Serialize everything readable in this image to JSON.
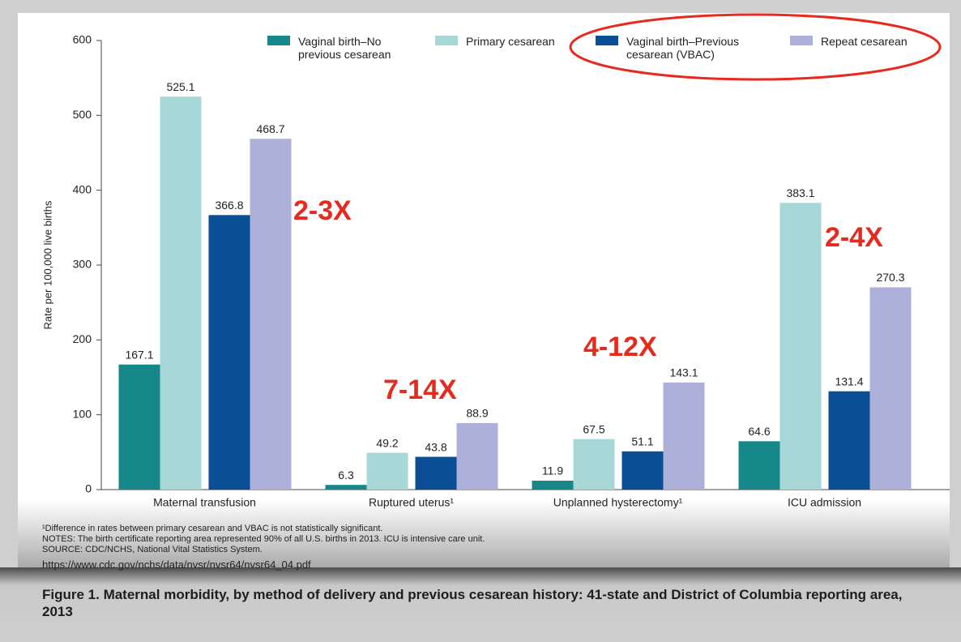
{
  "chart_data": {
    "type": "bar",
    "y_label": "Rate per 100,000 live births",
    "categories": [
      "Maternal transfusion",
      "Ruptured uterus¹",
      "Unplanned hysterectomy¹",
      "ICU admission"
    ],
    "series": [
      {
        "name": "Vaginal birth–No previous cesarean",
        "color": "#17888a",
        "values": [
          167.1,
          6.3,
          11.9,
          64.6
        ]
      },
      {
        "name": "Primary cesarean",
        "color": "#a8d7d7",
        "values": [
          525.1,
          49.2,
          67.5,
          383.1
        ]
      },
      {
        "name": "Vaginal birth–Previous cesarean (VBAC)",
        "color": "#0a4e96",
        "values": [
          366.8,
          43.8,
          51.1,
          131.4
        ]
      },
      {
        "name": "Repeat cesarean",
        "color": "#adb0d8",
        "values": [
          468.7,
          88.9,
          143.1,
          270.3
        ]
      }
    ],
    "ylim": [
      0,
      600
    ],
    "yticks": [
      0,
      100,
      200,
      300,
      400,
      500,
      600
    ],
    "annotations": [
      "2-3X",
      "7-14X",
      "4-12X",
      "2-4X"
    ],
    "annotation_color": "#e62a1e",
    "notes": [
      "¹Difference in rates between primary cesarean and VBAC is not statistically significant.",
      "NOTES: The birth certificate reporting area represented 90% of all U.S. births in 2013. ICU is intensive care unit.",
      "SOURCE: CDC/NCHS, National Vital Statistics System."
    ],
    "url": "https://www.cdc.gov/nchs/data/nvsr/nvsr64/nvsr64_04.pdf",
    "caption": "Figure 1. Maternal morbidity, by method of delivery and previous cesarean history: 41-state and District of Columbia reporting area, 2013"
  }
}
